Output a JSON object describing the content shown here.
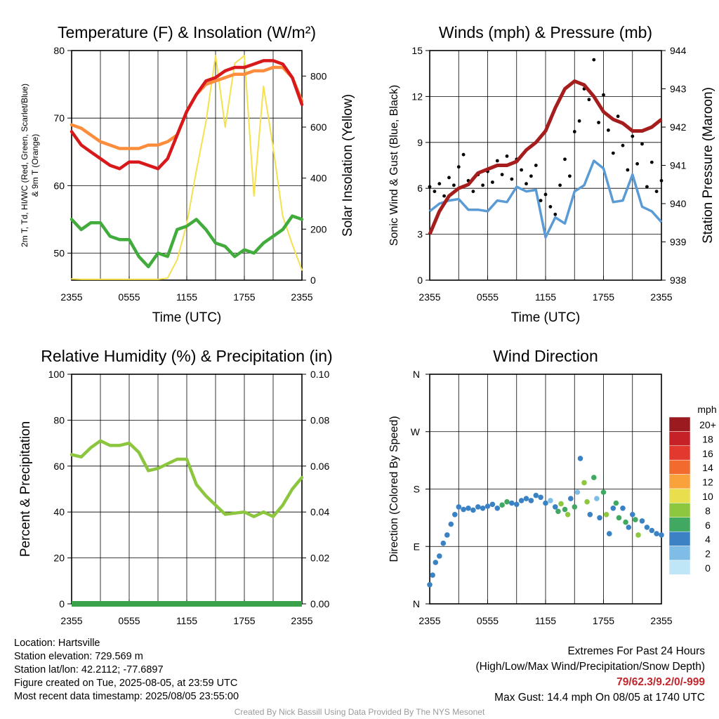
{
  "chart_data": [
    {
      "type": "line",
      "title": "Temperature (F) & Insolation (W/m²)",
      "xlabel": "Time (UTC)",
      "ylabel_lines": [
        "2m T, Td, HI/WC (Red, Green, Scarlet/Blue)",
        "& 9m T (Orange)"
      ],
      "y2label": "Solar Insolation (Yellow)",
      "x_ticks": [
        "2355",
        "0555",
        "1155",
        "1755",
        "2355"
      ],
      "ylim": [
        46,
        80
      ],
      "y_ticks": [
        50,
        60,
        70,
        80
      ],
      "y2lim": [
        0,
        900
      ],
      "y2_ticks": [
        0,
        200,
        400,
        600,
        800
      ],
      "grid": true,
      "series": [
        {
          "name": "2m T",
          "axis": "left",
          "color": "#d7191c",
          "x": [
            0,
            1,
            2,
            3,
            4,
            5,
            6,
            7,
            8,
            9,
            10,
            11,
            12,
            13,
            14,
            15,
            16,
            17,
            18,
            19,
            20,
            21,
            22,
            23,
            24
          ],
          "y": [
            68,
            66,
            65,
            64,
            63,
            62.5,
            63.5,
            63.5,
            63,
            62.5,
            64,
            67.5,
            71,
            73.5,
            75.5,
            76,
            77,
            77.5,
            77.5,
            78,
            78.5,
            78.5,
            78,
            76,
            72
          ]
        },
        {
          "name": "9m T",
          "axis": "left",
          "color": "#fd8d3c",
          "x": [
            0,
            1,
            2,
            3,
            4,
            5,
            6,
            7,
            8,
            9,
            10,
            11,
            12,
            13,
            14,
            15,
            16,
            17,
            18,
            19,
            20,
            21,
            22,
            23,
            24
          ],
          "y": [
            69,
            68.5,
            67.5,
            66.5,
            66,
            65.5,
            65.5,
            65.5,
            66,
            66,
            66.5,
            67.5,
            71,
            73.5,
            75,
            75.5,
            76,
            76.5,
            76.5,
            77,
            77,
            77.5,
            77.5,
            76,
            72.5
          ]
        },
        {
          "name": "2m Td",
          "axis": "left",
          "color": "#41ab3c",
          "x": [
            0,
            1,
            2,
            3,
            4,
            5,
            6,
            7,
            8,
            9,
            10,
            11,
            12,
            13,
            14,
            15,
            16,
            17,
            18,
            19,
            20,
            21,
            22,
            23,
            24
          ],
          "y": [
            55,
            53.5,
            54.5,
            54.5,
            52.5,
            52,
            52,
            49.5,
            48,
            50,
            49.5,
            53.5,
            54,
            55,
            53.5,
            51.5,
            51,
            49.5,
            50.5,
            50,
            51.5,
            52.5,
            53.5,
            55.5,
            55
          ]
        },
        {
          "name": "Solar Insolation",
          "axis": "right",
          "color": "#f5e04f",
          "x": [
            0,
            1,
            2,
            3,
            4,
            5,
            6,
            7,
            8,
            9,
            10,
            11,
            12,
            13,
            14,
            15,
            16,
            17,
            18,
            19,
            20,
            21,
            22,
            23,
            24
          ],
          "y": [
            5,
            3,
            3,
            3,
            3,
            3,
            3,
            3,
            3,
            3,
            8,
            80,
            220,
            430,
            620,
            880,
            600,
            850,
            880,
            330,
            760,
            520,
            250,
            140,
            40
          ]
        }
      ]
    },
    {
      "type": "line",
      "title": "Winds (mph) & Pressure (mb)",
      "xlabel": "Time (UTC)",
      "ylabel": "Sonic Wind & Gust (Blue, Black)",
      "y2label": "Station Pressure (Maroon)",
      "x_ticks": [
        "2355",
        "0555",
        "1155",
        "1755",
        "2355"
      ],
      "ylim": [
        0,
        15
      ],
      "y_ticks": [
        0,
        3,
        6,
        9,
        12,
        15
      ],
      "y2lim": [
        938,
        944
      ],
      "y2_ticks": [
        938,
        939,
        940,
        941,
        942,
        943,
        944
      ],
      "grid": true,
      "series": [
        {
          "name": "Sonic Wind",
          "axis": "left",
          "color": "#5b9bd5",
          "x": [
            0,
            1,
            2,
            3,
            4,
            5,
            6,
            7,
            8,
            9,
            10,
            11,
            12,
            13,
            14,
            15,
            16,
            17,
            18,
            19,
            20,
            21,
            22,
            23,
            24
          ],
          "y": [
            4.5,
            5,
            5.2,
            5.3,
            4.6,
            4.6,
            4.5,
            5.2,
            5.1,
            6.1,
            5.8,
            5.9,
            2.8,
            4.1,
            3.7,
            5.8,
            6.2,
            7.8,
            7.3,
            5.1,
            5.2,
            6.9,
            4.8,
            4.5,
            3.8
          ]
        },
        {
          "name": "Gust",
          "axis": "left",
          "color": "#000000",
          "x": [
            0,
            0.5,
            1,
            1.5,
            2,
            2.5,
            3,
            3.5,
            4,
            4.5,
            5,
            5.5,
            6,
            6.5,
            7,
            7.5,
            8,
            8.5,
            9,
            9.5,
            10,
            10.5,
            11,
            11.5,
            12,
            12.5,
            13,
            13.5,
            14,
            14.5,
            15,
            15.5,
            16,
            16.5,
            17,
            17.5,
            18,
            18.5,
            19,
            19.5,
            20,
            20.5,
            21,
            21.5,
            22,
            22.5,
            23,
            23.5,
            24
          ],
          "y": [
            6.1,
            5.8,
            6.3,
            5.5,
            6.7,
            6.2,
            7.4,
            8.2,
            6.5,
            5.8,
            6.9,
            6.2,
            7.1,
            6.4,
            7.8,
            6.9,
            8.1,
            6.6,
            7.9,
            7.2,
            6.3,
            6.8,
            7.5,
            5.2,
            5.6,
            4.8,
            4.3,
            6.2,
            7.9,
            6.8,
            9.7,
            10.4,
            12.5,
            11.8,
            14.4,
            10.3,
            12.1,
            9.8,
            8.3,
            10.7,
            8.8,
            7.2,
            9.4,
            7.6,
            8.9,
            6.1,
            7.7,
            5.8,
            6.5
          ]
        },
        {
          "name": "Station Pressure",
          "axis": "right",
          "color": "#a51d1d",
          "x": [
            0,
            1,
            2,
            3,
            4,
            5,
            6,
            7,
            8,
            9,
            10,
            11,
            12,
            13,
            14,
            15,
            16,
            17,
            18,
            19,
            20,
            21,
            22,
            23,
            24
          ],
          "y": [
            939.2,
            939.8,
            940.2,
            940.4,
            940.5,
            940.8,
            940.9,
            941,
            941,
            941.1,
            941.4,
            941.6,
            941.9,
            942.5,
            943,
            943.2,
            943.1,
            942.8,
            942.4,
            942.2,
            942.1,
            941.9,
            941.9,
            942,
            942.2
          ]
        }
      ]
    },
    {
      "type": "line",
      "title": "Relative Humidity (%) & Precipitation (in)",
      "xlabel": "",
      "ylabel": "Percent & Precipitation",
      "x_ticks": [
        "2355",
        "0555",
        "1155",
        "1755",
        "2355"
      ],
      "ylim": [
        0,
        100
      ],
      "y_ticks": [
        0,
        20,
        40,
        60,
        80,
        100
      ],
      "y2lim": [
        0,
        0.1
      ],
      "y2_ticks": [
        "0.00",
        "0.02",
        "0.04",
        "0.06",
        "0.08",
        "0.10"
      ],
      "grid": true,
      "series": [
        {
          "name": "Relative Humidity",
          "axis": "left",
          "color": "#8cc63f",
          "x": [
            0,
            1,
            2,
            3,
            4,
            5,
            6,
            7,
            8,
            9,
            10,
            11,
            12,
            13,
            14,
            15,
            16,
            17,
            18,
            19,
            20,
            21,
            22,
            23,
            24
          ],
          "y": [
            65,
            64,
            68,
            71,
            69,
            69,
            70,
            66,
            58,
            59,
            61,
            63,
            63,
            52,
            47,
            43,
            39,
            39.5,
            40,
            38,
            40,
            38,
            43,
            50,
            55
          ]
        },
        {
          "name": "Precipitation",
          "axis": "right",
          "color": "#3aa24a",
          "x": [
            0,
            24
          ],
          "y": [
            0,
            0
          ]
        }
      ]
    },
    {
      "type": "scatter",
      "title": "Wind Direction",
      "ylabel": "Direction (Colored By Speed)",
      "x_ticks": [
        "2355",
        "0555",
        "1155",
        "1755",
        "2355"
      ],
      "y_ticks": [
        "N",
        "E",
        "S",
        "W",
        "N"
      ],
      "ylim": [
        0,
        360
      ],
      "grid": true,
      "legend": {
        "title": "mph",
        "labels": [
          "20+",
          "18",
          "16",
          "14",
          "12",
          "10",
          "8",
          "6",
          "4",
          "2",
          "0"
        ],
        "colors": [
          "#9b1a1f",
          "#c62126",
          "#e2382d",
          "#f26a2e",
          "#f9a23c",
          "#e9de4e",
          "#8dc63f",
          "#41a861",
          "#3b82c4",
          "#80bde6",
          "#bfe6f7"
        ]
      },
      "points": {
        "x": [
          0,
          0.3,
          0.6,
          1,
          1.4,
          1.8,
          2.2,
          2.6,
          3,
          3.5,
          4,
          4.5,
          5,
          5.5,
          6,
          6.5,
          7,
          7.5,
          8,
          8.5,
          9,
          9.5,
          10,
          10.5,
          11,
          11.5,
          12,
          12.5,
          13,
          13.3,
          13.6,
          14,
          14.3,
          14.6,
          15,
          15.3,
          15.6,
          16,
          16.3,
          16.6,
          17,
          17.3,
          17.6,
          18,
          18.3,
          18.6,
          19,
          19.3,
          19.6,
          20,
          20.3,
          20.6,
          21,
          21.3,
          21.6,
          22,
          22.5,
          23,
          23.5,
          24
        ],
        "y": [
          30,
          45,
          65,
          75,
          95,
          108,
          125,
          140,
          152,
          148,
          150,
          147,
          152,
          150,
          153,
          156,
          150,
          155,
          160,
          158,
          156,
          162,
          165,
          162,
          170,
          167,
          158,
          162,
          152,
          145,
          157,
          148,
          140,
          165,
          152,
          175,
          228,
          190,
          160,
          140,
          198,
          165,
          135,
          175,
          140,
          110,
          150,
          158,
          135,
          150,
          128,
          120,
          140,
          132,
          108,
          130,
          120,
          115,
          110,
          108
        ],
        "speed": [
          4,
          3,
          4,
          3,
          4,
          4,
          4,
          4,
          4,
          4,
          4,
          4,
          4,
          4,
          4,
          4,
          4,
          5,
          6,
          4,
          4,
          4,
          4,
          4,
          4,
          4,
          3,
          2,
          4,
          6,
          7,
          6,
          8,
          4,
          6,
          2,
          3,
          7,
          8,
          4,
          6,
          2,
          4,
          6,
          7,
          3,
          4,
          5,
          6,
          4,
          5,
          4,
          4,
          6,
          7,
          4,
          4,
          4,
          4,
          4
        ]
      }
    }
  ],
  "footer": {
    "location": "Location: Hartsville",
    "elevation": "Station elevation: 729.569 m",
    "latlon": "Station lat/lon: 42.2112; -77.6897",
    "created": "Figure created on Tue, 2025-08-05, at 23:59 UTC",
    "recent": "Most recent data timestamp: 2025/08/05 23:55:00",
    "extremes_title": "Extremes For Past 24 Hours",
    "extremes_fields": "(High/Low/Max Wind/Precipitation/Snow Depth)",
    "extremes_values": "79/62.3/9.2/0/-999",
    "max_gust": "Max Gust: 14.4 mph On 08/05 at 1740 UTC",
    "credit": "Created By Nick Bassill Using Data Provided By The NYS Mesonet"
  }
}
